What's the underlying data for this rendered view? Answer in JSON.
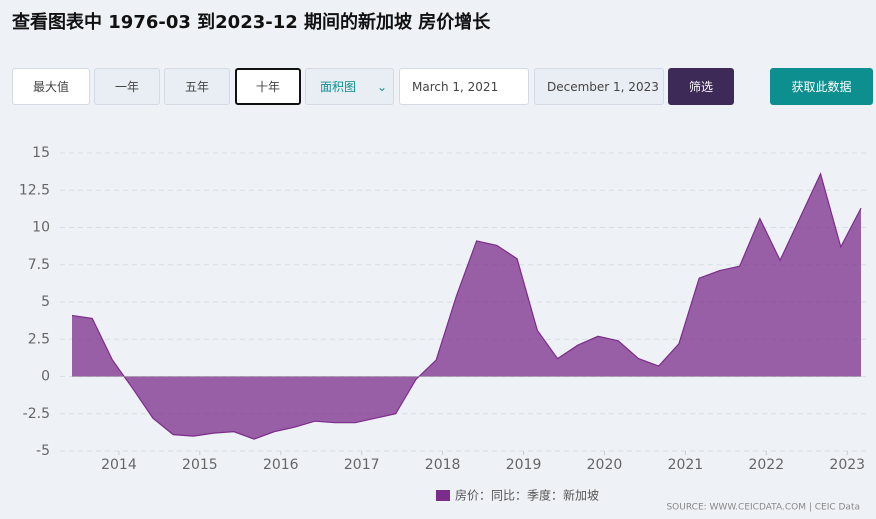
{
  "header": {
    "title": "查看图表中 1976-03 到2023-12 期间的新加坡 房价增长"
  },
  "controls": {
    "buttons": [
      "最大值",
      "一年",
      "五年",
      "十年"
    ],
    "chart_type": "面积图",
    "start_date": "March 1, 2021",
    "end_date": "December 1, 2023",
    "filter": "筛选",
    "get_data": "获取此数据"
  },
  "source": "SOURCE: WWW.CEICDATA.COM | CEIC Data",
  "chart_data": {
    "type": "area",
    "grid": true,
    "x": [
      2013.42,
      2013.67,
      2013.92,
      2014.17,
      2014.42,
      2014.67,
      2014.92,
      2015.17,
      2015.42,
      2015.67,
      2015.92,
      2016.17,
      2016.42,
      2016.67,
      2016.92,
      2017.17,
      2017.42,
      2017.67,
      2017.92,
      2018.17,
      2018.42,
      2018.67,
      2018.92,
      2019.17,
      2019.42,
      2019.67,
      2019.92,
      2020.17,
      2020.42,
      2020.67,
      2020.92,
      2021.17,
      2021.42,
      2021.67,
      2021.92,
      2022.17,
      2022.42,
      2022.67,
      2022.92,
      2023.17
    ],
    "series": [
      {
        "name": "房价：同比：季度：新加坡",
        "color": "#7b2d8b",
        "values": [
          4.1,
          3.9,
          1.1,
          -0.8,
          -2.8,
          -3.9,
          -4.0,
          -3.8,
          -3.7,
          -4.2,
          -3.7,
          -3.4,
          -3.0,
          -3.1,
          -3.1,
          -2.8,
          -2.5,
          -0.2,
          1.1,
          5.4,
          9.1,
          8.8,
          7.9,
          3.1,
          1.2,
          2.1,
          2.7,
          2.4,
          1.2,
          0.7,
          2.2,
          6.6,
          7.1,
          7.4,
          10.6,
          7.8,
          10.7,
          13.6,
          8.7,
          11.3
        ]
      }
    ],
    "xlim": [
      2013.42,
      2023.17
    ],
    "xticks": [
      2014,
      2015,
      2016,
      2017,
      2018,
      2019,
      2020,
      2021,
      2022,
      2023
    ],
    "ylim": [
      -5,
      15
    ],
    "yticks": [
      -5,
      -2.5,
      0,
      2.5,
      5,
      7.5,
      10,
      12.5,
      15
    ]
  }
}
